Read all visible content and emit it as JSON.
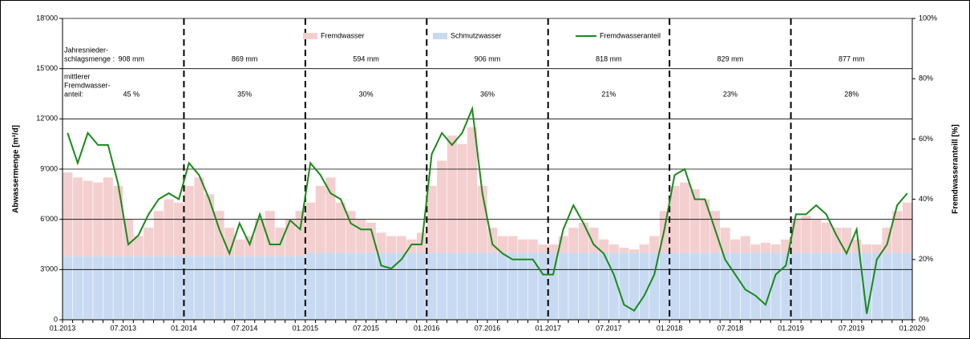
{
  "chart_data": {
    "type": "bar",
    "y_label": "Abwassermenge [m³/d]",
    "y2_label": "Fremdwasseranteill [%]",
    "categories": [
      "01.2013",
      null,
      null,
      null,
      null,
      null,
      "07.2013",
      null,
      null,
      null,
      null,
      null,
      "01.2014",
      null,
      null,
      null,
      null,
      null,
      "07.2014",
      null,
      null,
      null,
      null,
      null,
      "01.2015",
      null,
      null,
      null,
      null,
      null,
      "07.2015",
      null,
      null,
      null,
      null,
      null,
      "01.2016",
      null,
      null,
      null,
      null,
      null,
      "07.2016",
      null,
      null,
      null,
      null,
      null,
      "01.2017",
      null,
      null,
      null,
      null,
      null,
      "07.2017",
      null,
      null,
      null,
      null,
      null,
      "01.2018",
      null,
      null,
      null,
      null,
      null,
      "07.2018",
      null,
      null,
      null,
      null,
      null,
      "01.2019",
      null,
      null,
      null,
      null,
      null,
      "07.2019",
      null,
      null,
      null,
      null,
      null
    ],
    "end_label": "01.2020",
    "series": [
      {
        "name": "Fremdwasser",
        "color": "#f4cfcf",
        "values": [
          5000,
          4700,
          4500,
          4400,
          4700,
          4200,
          2200,
          1200,
          1700,
          2700,
          3400,
          3200,
          4200,
          4700,
          3700,
          2700,
          1700,
          1000,
          1200,
          2200,
          2700,
          1700,
          2200,
          2700,
          3000,
          4000,
          4500,
          3000,
          2500,
          2000,
          1800,
          1200,
          1000,
          1000,
          800,
          1200,
          4000,
          5500,
          7000,
          6500,
          7500,
          4000,
          1500,
          1000,
          1000,
          800,
          800,
          500,
          500,
          1000,
          1500,
          1800,
          1500,
          800,
          500,
          300,
          200,
          500,
          1000,
          2500,
          4000,
          4200,
          3800,
          3200,
          2500,
          1500,
          800,
          1000,
          500,
          600,
          500,
          800,
          2000,
          2200,
          2000,
          1800,
          1500,
          1500,
          800,
          500,
          500,
          1500,
          2500,
          3000
        ]
      },
      {
        "name": "Schmutzwasser",
        "color": "#c7daf2",
        "values": [
          3800,
          3800,
          3800,
          3800,
          3800,
          3800,
          3800,
          3800,
          3800,
          3800,
          3800,
          3800,
          3800,
          3800,
          3800,
          3800,
          3800,
          3800,
          3800,
          3800,
          3800,
          3800,
          3800,
          3800,
          4000,
          4000,
          4000,
          4000,
          4000,
          4000,
          4000,
          4000,
          4000,
          4000,
          4000,
          4000,
          4000,
          4000,
          4000,
          4000,
          4000,
          4000,
          4000,
          4000,
          4000,
          4000,
          4000,
          4000,
          4000,
          4000,
          4000,
          4000,
          4000,
          4000,
          4000,
          4000,
          4000,
          4000,
          4000,
          4000,
          4000,
          4000,
          4000,
          4000,
          4000,
          4000,
          4000,
          4000,
          4000,
          4000,
          4000,
          4000,
          4000,
          4000,
          4000,
          4000,
          4000,
          4000,
          4000,
          4000,
          4000,
          4000,
          4000,
          4000
        ]
      },
      {
        "name": "Fremdwasseranteil",
        "color": "#1a8a1a",
        "axis": "y2",
        "values": [
          62,
          52,
          62,
          58,
          58,
          45,
          25,
          28,
          35,
          40,
          42,
          40,
          52,
          48,
          40,
          30,
          22,
          32,
          25,
          35,
          25,
          25,
          33,
          30,
          52,
          48,
          42,
          40,
          32,
          30,
          30,
          18,
          17,
          20,
          25,
          25,
          55,
          62,
          58,
          62,
          70,
          42,
          25,
          22,
          20,
          20,
          20,
          15,
          15,
          30,
          38,
          32,
          25,
          22,
          15,
          5,
          3,
          8,
          15,
          30,
          48,
          50,
          40,
          40,
          30,
          20,
          15,
          10,
          8,
          5,
          15,
          18,
          35,
          35,
          38,
          35,
          28,
          22,
          30,
          2,
          20,
          25,
          38,
          42
        ]
      }
    ],
    "ylim": [
      0,
      18000
    ],
    "yticks": [
      0,
      {
        "value": 3000,
        "label": "3'000"
      },
      {
        "value": 6000,
        "label": "6'000"
      },
      {
        "value": 9000,
        "label": "9'000"
      },
      {
        "value": 12000,
        "label": "12'000"
      },
      {
        "value": 15000,
        "label": "15'000"
      },
      {
        "value": 18000,
        "label": "18'000"
      }
    ],
    "y2lim": [
      0,
      100
    ],
    "y2ticks": [
      {
        "value": 0,
        "label": "0%"
      },
      {
        "value": 20,
        "label": "20%"
      },
      {
        "value": 40,
        "label": "40%"
      },
      {
        "value": 60,
        "label": "60%"
      },
      {
        "value": 80,
        "label": "80%"
      },
      {
        "value": 100,
        "label": "100%"
      }
    ],
    "grid": true,
    "precip_label": [
      "Jahresnieder-",
      "schlagsmenge :"
    ],
    "precip": [
      "908 mm",
      "869 mm",
      "594 mm",
      "906 mm",
      "818 mm",
      "829 mm",
      "877 mm"
    ],
    "share_label": [
      "mittlerer",
      "Fremdwasser-",
      "anteil:"
    ],
    "share": [
      "45 %",
      "35%",
      "30%",
      "36%",
      "21%",
      "23%",
      "28%"
    ]
  }
}
